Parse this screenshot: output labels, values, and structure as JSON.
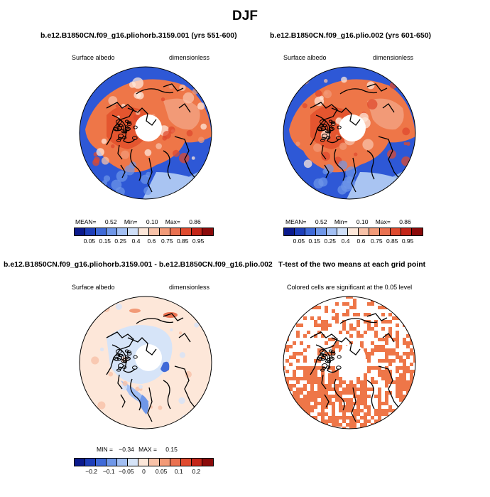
{
  "figure": {
    "title": "DJF"
  },
  "chart_data": [
    {
      "type": "heatmap",
      "title": "b.e12.B1850CN.f09_g16.pliohorb.3159.001 (yrs 551-600)",
      "left_label": "Surface albedo",
      "right_label": "dimensionless",
      "projection": "north polar stereographic",
      "stats": {
        "mean_label": "MEAN=",
        "mean": "0.52",
        "min_label": "Min=",
        "min": "0.10",
        "max_label": "Max=",
        "max": "0.86"
      },
      "colorbar": {
        "levels": [
          "0.05",
          "0.15",
          "0.25",
          "0.4",
          "0.6",
          "0.75",
          "0.85",
          "0.95"
        ],
        "colors": [
          "#0b1a8c",
          "#1e3fb9",
          "#3f6ad8",
          "#6f97e8",
          "#a2bff3",
          "#cfdff8",
          "#fde7d9",
          "#f8c2a8",
          "#f29a77",
          "#ea7150",
          "#df4a2e",
          "#c42518",
          "#8b0a0a"
        ]
      }
    },
    {
      "type": "heatmap",
      "title": "b.e12.B1850CN.f09_g16.plio.002 (yrs 601-650)",
      "left_label": "Surface albedo",
      "right_label": "dimensionless",
      "projection": "north polar stereographic",
      "stats": {
        "mean_label": "MEAN=",
        "mean": "0.52",
        "min_label": "Min=",
        "min": "0.10",
        "max_label": "Max=",
        "max": "0.86"
      },
      "colorbar": {
        "levels": [
          "0.05",
          "0.15",
          "0.25",
          "0.4",
          "0.6",
          "0.75",
          "0.85",
          "0.95"
        ],
        "colors": [
          "#0b1a8c",
          "#1e3fb9",
          "#3f6ad8",
          "#6f97e8",
          "#a2bff3",
          "#cfdff8",
          "#fde7d9",
          "#f8c2a8",
          "#f29a77",
          "#ea7150",
          "#df4a2e",
          "#c42518",
          "#8b0a0a"
        ]
      }
    },
    {
      "type": "heatmap",
      "title": "b.e12.B1850CN.f09_g16.pliohorb.3159.001 - b.e12.B1850CN.f09_g16.plio.002",
      "left_label": "Surface albedo",
      "right_label": "dimensionless",
      "projection": "north polar stereographic",
      "stats": {
        "min_label": "MIN =",
        "min": "−0.34",
        "max_label": "MAX =",
        "max": "0.15"
      },
      "colorbar": {
        "levels": [
          "−0.2",
          "−0.1",
          "−0.05",
          "0",
          "0.05",
          "0.1",
          "0.2"
        ],
        "colors": [
          "#0b1a8c",
          "#1e3fb9",
          "#3f6ad8",
          "#6f97e8",
          "#a2bff3",
          "#d6e4f8",
          "#fde7d9",
          "#f8c2a8",
          "#f29a77",
          "#ea7150",
          "#df4a2e",
          "#c42518",
          "#8b0a0a"
        ]
      }
    },
    {
      "type": "heatmap",
      "title": "T-test of the two means at each grid point",
      "subtitle": "Colored cells are significant at the 0.05 level",
      "projection": "north polar stereographic",
      "significant_color": "#ee7648"
    }
  ]
}
